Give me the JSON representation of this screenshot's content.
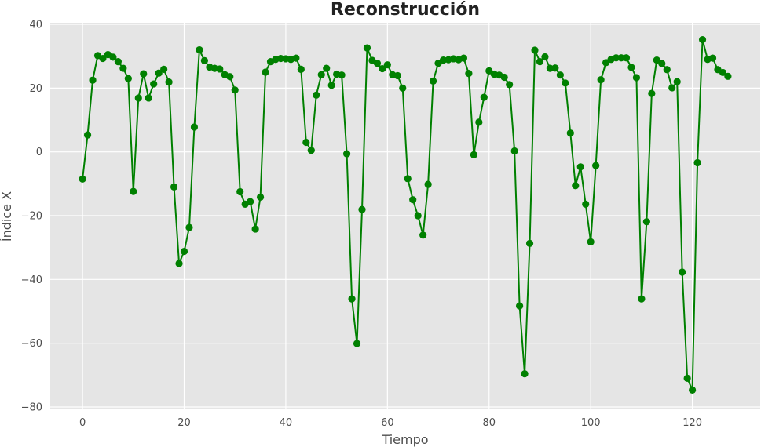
{
  "chart_data": {
    "type": "line",
    "title": "Reconstrucción",
    "xlabel": "Tiempo",
    "ylabel": "Índice X",
    "xlim": [
      -6.35,
      133.35
    ],
    "ylim": [
      -80.5,
      40.5
    ],
    "xticks": [
      0,
      20,
      40,
      60,
      80,
      100,
      120
    ],
    "yticks": [
      -80,
      -60,
      -40,
      -20,
      0,
      20,
      40
    ],
    "grid": true,
    "legend": "none",
    "colors": {
      "line": "#008000",
      "plot_background": "#e5e5e5",
      "grid": "#ffffff"
    },
    "series": [
      {
        "x": [
          0,
          1,
          2,
          3,
          4,
          5,
          6,
          7,
          8,
          9,
          10,
          11,
          12,
          13,
          14,
          15,
          16,
          17,
          18,
          19,
          20,
          21,
          22,
          23,
          24,
          25,
          26,
          27,
          28,
          29,
          30,
          31,
          32,
          33,
          34,
          35,
          36,
          37,
          38,
          39,
          40,
          41,
          42,
          43,
          44,
          45,
          46,
          47,
          48,
          49,
          50,
          51,
          52,
          53,
          54,
          55,
          56,
          57,
          58,
          59,
          60,
          61,
          62,
          63,
          64,
          65,
          66,
          67,
          68,
          69,
          70,
          71,
          72,
          73,
          74,
          75,
          76,
          77,
          78,
          79,
          80,
          81,
          82,
          83,
          84,
          85,
          86,
          87,
          88,
          89,
          90,
          91,
          92,
          93,
          94,
          95,
          96,
          97,
          98,
          99,
          100,
          101,
          102,
          103,
          104,
          105,
          106,
          107,
          108,
          109,
          110,
          111,
          112,
          113,
          114,
          115,
          116,
          117,
          118,
          119,
          120,
          121,
          122,
          123,
          124,
          125,
          126,
          127
        ],
        "y": [
          -8.5,
          5.3,
          22.5,
          30.2,
          29.3,
          30.5,
          29.7,
          28.3,
          26.2,
          23.0,
          -12.4,
          16.9,
          24.5,
          16.9,
          21.3,
          24.7,
          25.9,
          21.9,
          -11.0,
          -35.0,
          -31.2,
          -23.7,
          7.8,
          32.0,
          28.6,
          26.6,
          26.2,
          26.0,
          24.2,
          23.6,
          19.4,
          -12.5,
          -16.4,
          -15.6,
          -24.2,
          -14.2,
          25.0,
          28.3,
          29.0,
          29.3,
          29.2,
          29.0,
          29.4,
          25.9,
          3.0,
          0.5,
          17.8,
          24.2,
          26.2,
          20.9,
          24.4,
          24.1,
          -0.6,
          -46.1,
          -60.1,
          -18.1,
          32.6,
          28.7,
          27.8,
          26.1,
          27.3,
          24.2,
          23.9,
          20.0,
          -8.4,
          -15.0,
          -20.0,
          -26.1,
          -10.2,
          22.2,
          27.8,
          28.8,
          28.9,
          29.2,
          28.9,
          29.4,
          24.6,
          -0.9,
          9.3,
          17.1,
          25.4,
          24.4,
          24.1,
          23.4,
          21.1,
          0.3,
          -48.3,
          -69.6,
          -28.7,
          31.9,
          28.3,
          29.8,
          26.2,
          26.3,
          24.1,
          21.6,
          5.9,
          -10.6,
          -4.7,
          -16.4,
          -28.2,
          -4.3,
          22.6,
          28.0,
          29.0,
          29.5,
          29.5,
          29.5,
          26.5,
          23.3,
          -46.1,
          -21.9,
          18.3,
          28.8,
          27.7,
          25.8,
          20.1,
          22.0,
          -37.7,
          -71.0,
          -74.7,
          -3.4,
          35.2,
          29.0,
          29.4,
          25.8,
          24.9,
          23.7
        ]
      }
    ]
  }
}
